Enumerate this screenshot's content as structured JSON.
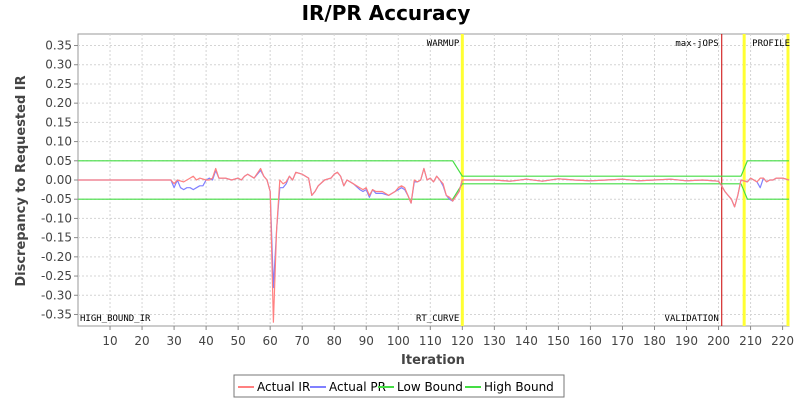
{
  "chart_data": {
    "type": "line",
    "title": "IR/PR Accuracy",
    "xlabel": "Iteration",
    "ylabel": "Discrepancy to Requested IR",
    "xlim": [
      0,
      222
    ],
    "ylim": [
      -0.38,
      0.38
    ],
    "x_ticks": [
      10,
      20,
      30,
      40,
      50,
      60,
      70,
      80,
      90,
      100,
      110,
      120,
      130,
      140,
      150,
      160,
      170,
      180,
      190,
      200,
      210,
      220
    ],
    "y_ticks": [
      0.35,
      0.3,
      0.25,
      0.2,
      0.15,
      0.1,
      0.05,
      0.0,
      -0.05,
      -0.1,
      -0.15,
      -0.2,
      -0.25,
      -0.3,
      -0.35
    ],
    "y_tick_labels": [
      "0.35",
      "0.30",
      "0.25",
      "0.20",
      "0.15",
      "0.10",
      "0.05",
      "0.00",
      "-0.05",
      "-0.10",
      "-0.15",
      "-0.20",
      "-0.25",
      "-0.30",
      "-0.35"
    ],
    "grid": true,
    "legend_position": "bottom",
    "series": [
      {
        "name": "Actual IR",
        "color": "#ff8080",
        "points": [
          [
            0,
            0.0
          ],
          [
            29,
            0.0
          ],
          [
            30,
            -0.01
          ],
          [
            31,
            0.0
          ],
          [
            33,
            -0.005
          ],
          [
            35,
            0.005
          ],
          [
            36,
            0.01
          ],
          [
            37,
            0.0
          ],
          [
            38,
            0.005
          ],
          [
            40,
            0.0
          ],
          [
            41,
            0.0
          ],
          [
            42,
            0.005
          ],
          [
            43,
            0.03
          ],
          [
            44,
            0.005
          ],
          [
            46,
            0.005
          ],
          [
            48,
            0.0
          ],
          [
            50,
            0.005
          ],
          [
            51,
            0.0
          ],
          [
            52,
            0.01
          ],
          [
            53,
            0.015
          ],
          [
            55,
            0.005
          ],
          [
            57,
            0.03
          ],
          [
            58,
            0.01
          ],
          [
            59,
            0.0
          ],
          [
            60,
            -0.03
          ],
          [
            61,
            -0.37
          ],
          [
            62,
            -0.13
          ],
          [
            63,
            0.0
          ],
          [
            64,
            -0.01
          ],
          [
            65,
            -0.005
          ],
          [
            66,
            0.01
          ],
          [
            67,
            0.0
          ],
          [
            68,
            0.02
          ],
          [
            70,
            0.015
          ],
          [
            72,
            0.005
          ],
          [
            73,
            -0.04
          ],
          [
            74,
            -0.03
          ],
          [
            75,
            -0.015
          ],
          [
            77,
            0.0
          ],
          [
            79,
            0.005
          ],
          [
            80,
            0.015
          ],
          [
            81,
            0.02
          ],
          [
            82,
            0.01
          ],
          [
            83,
            -0.015
          ],
          [
            84,
            0.0
          ],
          [
            86,
            -0.01
          ],
          [
            88,
            -0.02
          ],
          [
            89,
            -0.025
          ],
          [
            90,
            -0.02
          ],
          [
            91,
            -0.04
          ],
          [
            92,
            -0.025
          ],
          [
            93,
            -0.03
          ],
          [
            95,
            -0.03
          ],
          [
            97,
            -0.04
          ],
          [
            99,
            -0.03
          ],
          [
            100,
            -0.02
          ],
          [
            101,
            -0.015
          ],
          [
            102,
            -0.02
          ],
          [
            103,
            -0.04
          ],
          [
            104,
            -0.06
          ],
          [
            105,
            0.0
          ],
          [
            106,
            -0.005
          ],
          [
            107,
            0.0
          ],
          [
            108,
            0.03
          ],
          [
            109,
            0.0
          ],
          [
            110,
            0.005
          ],
          [
            111,
            -0.005
          ],
          [
            112,
            0.01
          ],
          [
            113,
            0.0
          ],
          [
            114,
            -0.01
          ],
          [
            115,
            -0.04
          ],
          [
            116,
            -0.045
          ],
          [
            117,
            -0.055
          ],
          [
            119,
            -0.03
          ],
          [
            120,
            0.0
          ],
          [
            125,
            0.0
          ],
          [
            130,
            0.0
          ],
          [
            135,
            -0.003
          ],
          [
            140,
            0.002
          ],
          [
            145,
            -0.003
          ],
          [
            150,
            0.003
          ],
          [
            155,
            0.0
          ],
          [
            160,
            -0.002
          ],
          [
            165,
            0.0
          ],
          [
            170,
            0.002
          ],
          [
            175,
            -0.002
          ],
          [
            180,
            0.0
          ],
          [
            185,
            0.002
          ],
          [
            190,
            -0.002
          ],
          [
            195,
            0.0
          ],
          [
            200,
            -0.003
          ],
          [
            201,
            -0.015
          ],
          [
            202,
            -0.03
          ],
          [
            203,
            -0.04
          ],
          [
            204,
            -0.05
          ],
          [
            205,
            -0.07
          ],
          [
            206,
            -0.04
          ],
          [
            207,
            0.0
          ],
          [
            209,
            -0.005
          ],
          [
            210,
            0.005
          ],
          [
            211,
            0.0
          ],
          [
            212,
            -0.005
          ],
          [
            213,
            0.005
          ],
          [
            214,
            0.005
          ],
          [
            215,
            -0.005
          ],
          [
            216,
            0.0
          ],
          [
            217,
            0.0
          ],
          [
            218,
            0.005
          ],
          [
            220,
            0.005
          ],
          [
            222,
            0.0
          ]
        ]
      },
      {
        "name": "Actual PR",
        "color": "#8080ff",
        "points": [
          [
            0,
            0.0
          ],
          [
            29,
            0.0
          ],
          [
            30,
            -0.02
          ],
          [
            31,
            0.0
          ],
          [
            32,
            -0.02
          ],
          [
            33,
            -0.025
          ],
          [
            34,
            -0.02
          ],
          [
            35,
            -0.02
          ],
          [
            36,
            -0.025
          ],
          [
            37,
            -0.02
          ],
          [
            38,
            -0.015
          ],
          [
            39,
            -0.015
          ],
          [
            40,
            0.0
          ],
          [
            41,
            0.005
          ],
          [
            42,
            0.0
          ],
          [
            43,
            0.025
          ],
          [
            44,
            0.005
          ],
          [
            46,
            0.005
          ],
          [
            48,
            0.0
          ],
          [
            50,
            0.005
          ],
          [
            51,
            0.0
          ],
          [
            52,
            0.01
          ],
          [
            53,
            0.015
          ],
          [
            55,
            0.005
          ],
          [
            57,
            0.025
          ],
          [
            58,
            0.01
          ],
          [
            59,
            0.0
          ],
          [
            60,
            -0.03
          ],
          [
            61,
            -0.28
          ],
          [
            62,
            -0.13
          ],
          [
            63,
            -0.02
          ],
          [
            64,
            -0.02
          ],
          [
            65,
            -0.01
          ],
          [
            66,
            0.01
          ],
          [
            67,
            0.0
          ],
          [
            68,
            0.02
          ],
          [
            70,
            0.015
          ],
          [
            72,
            0.005
          ],
          [
            73,
            -0.04
          ],
          [
            74,
            -0.03
          ],
          [
            75,
            -0.015
          ],
          [
            77,
            0.0
          ],
          [
            79,
            0.005
          ],
          [
            80,
            0.015
          ],
          [
            81,
            0.02
          ],
          [
            82,
            0.01
          ],
          [
            83,
            -0.015
          ],
          [
            84,
            0.0
          ],
          [
            86,
            -0.01
          ],
          [
            88,
            -0.025
          ],
          [
            89,
            -0.03
          ],
          [
            90,
            -0.025
          ],
          [
            91,
            -0.045
          ],
          [
            92,
            -0.025
          ],
          [
            93,
            -0.035
          ],
          [
            95,
            -0.035
          ],
          [
            97,
            -0.04
          ],
          [
            99,
            -0.03
          ],
          [
            100,
            -0.025
          ],
          [
            101,
            -0.02
          ],
          [
            102,
            -0.025
          ],
          [
            103,
            -0.04
          ],
          [
            104,
            -0.06
          ],
          [
            105,
            -0.005
          ],
          [
            106,
            -0.005
          ],
          [
            107,
            0.0
          ],
          [
            108,
            0.03
          ],
          [
            109,
            0.0
          ],
          [
            110,
            0.005
          ],
          [
            111,
            -0.005
          ],
          [
            112,
            0.01
          ],
          [
            113,
            0.0
          ],
          [
            114,
            -0.015
          ],
          [
            115,
            -0.04
          ],
          [
            116,
            -0.05
          ],
          [
            117,
            -0.055
          ],
          [
            119,
            -0.03
          ],
          [
            120,
            0.0
          ],
          [
            125,
            0.0
          ],
          [
            130,
            0.0
          ],
          [
            135,
            -0.003
          ],
          [
            140,
            0.002
          ],
          [
            145,
            -0.003
          ],
          [
            150,
            0.003
          ],
          [
            155,
            0.0
          ],
          [
            160,
            -0.002
          ],
          [
            165,
            0.0
          ],
          [
            170,
            0.002
          ],
          [
            175,
            -0.002
          ],
          [
            180,
            0.0
          ],
          [
            185,
            0.002
          ],
          [
            190,
            -0.002
          ],
          [
            195,
            0.0
          ],
          [
            200,
            -0.003
          ],
          [
            201,
            -0.015
          ],
          [
            202,
            -0.03
          ],
          [
            203,
            -0.04
          ],
          [
            204,
            -0.05
          ],
          [
            205,
            -0.07
          ],
          [
            206,
            -0.04
          ],
          [
            207,
            0.0
          ],
          [
            209,
            -0.005
          ],
          [
            210,
            0.005
          ],
          [
            211,
            0.0
          ],
          [
            212,
            -0.005
          ],
          [
            213,
            -0.02
          ],
          [
            214,
            0.005
          ],
          [
            215,
            -0.005
          ],
          [
            216,
            0.0
          ],
          [
            217,
            0.0
          ],
          [
            218,
            0.005
          ],
          [
            220,
            0.005
          ],
          [
            222,
            0.0
          ]
        ]
      },
      {
        "name": "Low Bound",
        "color": "#44dd44",
        "points": [
          [
            0,
            -0.05
          ],
          [
            117,
            -0.05
          ],
          [
            120,
            -0.01
          ],
          [
            207,
            -0.01
          ],
          [
            209,
            -0.05
          ],
          [
            222,
            -0.05
          ]
        ]
      },
      {
        "name": "High Bound",
        "color": "#44dd44",
        "points": [
          [
            0,
            0.05
          ],
          [
            117,
            0.05
          ],
          [
            120,
            0.01
          ],
          [
            207,
            0.01
          ],
          [
            209,
            0.05
          ],
          [
            222,
            0.05
          ]
        ]
      }
    ],
    "markers": [
      {
        "x": 120,
        "color": "#ffff33",
        "label": "WARMUP",
        "position": "top"
      },
      {
        "x": 201,
        "color": "#cc0000",
        "label": "max-jOPS",
        "position": "top"
      },
      {
        "x": 208,
        "color": "#ffff33",
        "label": "PROFILE",
        "position": "top"
      },
      {
        "x": 0,
        "color": "none",
        "label": "HIGH_BOUND_IR",
        "position": "bottom"
      },
      {
        "x": 120,
        "color": "none",
        "label": "RT_CURVE",
        "position": "bottom"
      },
      {
        "x": 201,
        "color": "none",
        "label": "VALIDATION",
        "position": "bottom"
      },
      {
        "x": 222,
        "color": "#ffff33",
        "label": "",
        "position": "none"
      }
    ]
  }
}
